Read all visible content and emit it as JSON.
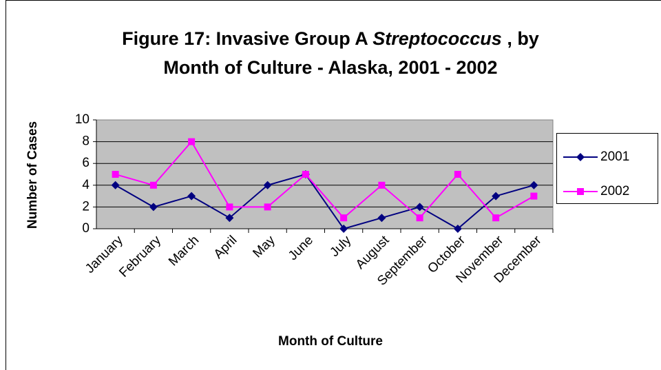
{
  "chart_data": {
    "type": "line",
    "title": [
      [
        {
          "text": "Figure 17:  Invasive Group A "
        },
        {
          "text": "Streptococcus",
          "italic": true
        },
        {
          "text": " , by"
        }
      ],
      [
        {
          "text": "Month of Culture - Alaska, 2001 - 2002"
        }
      ]
    ],
    "xlabel": "Month of Culture",
    "ylabel": "Number of Cases",
    "categories": [
      "January",
      "February",
      "March",
      "April",
      "May",
      "June",
      "July",
      "August",
      "September",
      "October",
      "November",
      "December"
    ],
    "series": [
      {
        "name": "2001",
        "color": "#000080",
        "marker": "diamond",
        "values": [
          4,
          2,
          3,
          1,
          4,
          5,
          0,
          1,
          2,
          0,
          3,
          4
        ]
      },
      {
        "name": "2002",
        "color": "#ff00ff",
        "marker": "square",
        "values": [
          5,
          4,
          8,
          2,
          2,
          5,
          1,
          4,
          1,
          5,
          1,
          3
        ]
      }
    ],
    "ylim": [
      0,
      10
    ],
    "yticks": [
      0,
      2,
      4,
      6,
      8,
      10
    ],
    "grid": true,
    "legend": "right"
  }
}
